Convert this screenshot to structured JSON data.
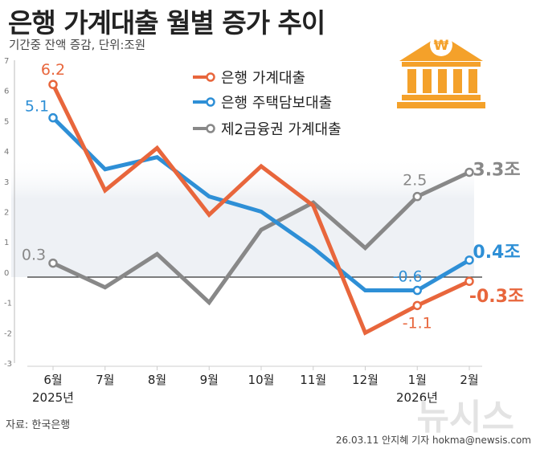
{
  "title": "은행 가계대출 월별 증가 추이",
  "subtitle": "기간중 잔액 증감, 단위:조원",
  "source": "자료: 한국은행",
  "credit": "26.03.11 안지혜 기자 hokma@newsis.com",
  "watermark": "뉴시스",
  "icon": "bank-won-icon",
  "year_labels": {
    "start": "2025년",
    "end": "2026년"
  },
  "chart_data": {
    "type": "line",
    "title": "은행 가계대출 월별 증가 추이",
    "ylabel": "기간중 잔액 증감, 단위:조원",
    "categories": [
      "6월",
      "7월",
      "8월",
      "9월",
      "10월",
      "11월",
      "12월",
      "1월",
      "2월"
    ],
    "yticks": [
      "-3",
      "-2",
      "-1",
      "0",
      "1",
      "2",
      "3",
      "4",
      "5",
      "6",
      "7"
    ],
    "ylim": [
      -3,
      7
    ],
    "grid": false,
    "legend_position": "top-center",
    "series": [
      {
        "name": "은행 가계대출",
        "color": "#E8663C",
        "values": [
          6.2,
          2.7,
          4.1,
          1.9,
          3.5,
          2.2,
          -2.0,
          -1.1,
          -0.3
        ],
        "labels": [
          {
            "index": 0,
            "text": "6.2"
          },
          {
            "index": 7,
            "text": "-1.1"
          },
          {
            "index": 8,
            "text": "-0.3조"
          }
        ]
      },
      {
        "name": "은행 주택담보대출",
        "color": "#2E8FD6",
        "values": [
          5.1,
          3.4,
          3.8,
          2.5,
          2.0,
          0.8,
          -0.6,
          -0.6,
          0.4
        ],
        "labels": [
          {
            "index": 0,
            "text": "5.1"
          },
          {
            "index": 7,
            "text": "-0.6"
          },
          {
            "index": 8,
            "text": "0.4조"
          }
        ]
      },
      {
        "name": "제2금융권 가계대출",
        "color": "#888888",
        "values": [
          0.3,
          -0.5,
          0.6,
          -1.0,
          1.4,
          2.3,
          0.8,
          2.5,
          3.3
        ],
        "labels": [
          {
            "index": 0,
            "text": "0.3"
          },
          {
            "index": 7,
            "text": "2.5"
          },
          {
            "index": 8,
            "text": "3.3조"
          }
        ]
      }
    ]
  }
}
